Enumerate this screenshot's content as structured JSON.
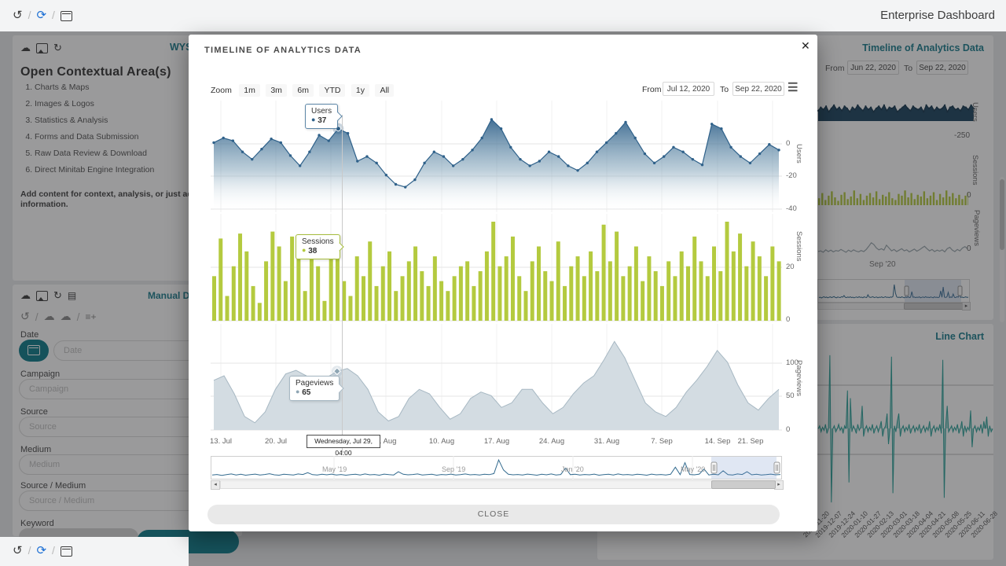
{
  "page": {
    "title": "Enterprise Dashboard"
  },
  "topbar": {
    "icons": [
      "history-icon",
      "refresh-icon",
      "calendar-icon"
    ]
  },
  "footer": {
    "icons": [
      "history-icon",
      "refresh-icon",
      "calendar-icon"
    ]
  },
  "left_panel": {
    "wys_link": "WYS",
    "heading": "Open Contextual Area(s)",
    "list": [
      "Charts & Maps",
      "Images & Logos",
      "Statistics & Analysis",
      "Forms and Data Submission",
      "Raw Data Review & Download",
      "Direct Minitab Engine Integration"
    ],
    "note_line1": "Add content for context, analysis, or just additio",
    "note_line2": "information."
  },
  "form_panel": {
    "manual_link": "Manual Da",
    "fields": [
      {
        "label": "Date",
        "placeholder": "Date"
      },
      {
        "label": "Campaign",
        "placeholder": "Campaign"
      },
      {
        "label": "Source",
        "placeholder": "Source"
      },
      {
        "label": "Medium",
        "placeholder": "Medium"
      },
      {
        "label": "Source / Medium",
        "placeholder": "Source / Medium"
      },
      {
        "label": "Keyword",
        "placeholder": ""
      }
    ]
  },
  "right_panel": {
    "timeline_link": "Timeline of Analytics Data",
    "from_label": "From",
    "from_value": "Jun 22, 2020",
    "to_label": "To",
    "to_value": "Sep 22, 2020",
    "users_axis": "Users",
    "sessions_axis": "Sessions",
    "pageviews_axis": "Pageviews",
    "neg250": "-250",
    "zero1": "0",
    "zero2": "0",
    "sep20": "Sep '20",
    "line_chart_link": "Line Chart",
    "line_xlabels": [
      "2019-11-20",
      "2019-12-07",
      "2019-12-24",
      "2020-01-10",
      "2020-01-27",
      "2020-02-13",
      "2020-03-01",
      "2020-03-18",
      "2020-04-04",
      "2020-04-21",
      "2020-05-08",
      "2020-05-25",
      "2020-06-11",
      "2020-06-28"
    ]
  },
  "modal": {
    "title": "TIMELINE OF ANALYTICS DATA",
    "close_x": "✕",
    "zoom_label": "Zoom",
    "zoom_buttons": [
      "1m",
      "3m",
      "6m",
      "YTD",
      "1y",
      "All"
    ],
    "from_label": "From",
    "from_value": "Jul 12, 2020",
    "to_label": "To",
    "to_value": "Sep 22, 2020",
    "pane_titles": [
      "Users",
      "Sessions",
      "Pageviews"
    ],
    "y_users": [
      "0",
      "-20",
      "-40"
    ],
    "y_sessions": [
      "20",
      "0"
    ],
    "y_pageviews": [
      "100",
      "50",
      "0"
    ],
    "tooltips": {
      "users": {
        "name": "Users",
        "value": "37"
      },
      "sessions": {
        "name": "Sessions",
        "value": "38"
      },
      "pageviews": {
        "name": "Pageviews",
        "value": "65"
      }
    },
    "crosshair_label": "Wednesday, Jul 29, 04:00",
    "x_labels": [
      "13. Jul",
      "20. Jul",
      "27. Jul",
      "3. Aug",
      "10. Aug",
      "17. Aug",
      "24. Aug",
      "31. Aug",
      "7. Sep",
      "14. Sep",
      "21. Sep"
    ],
    "navigator_labels": [
      "May '19",
      "Sep '19",
      "Jan '20",
      "May '20"
    ],
    "close_button": "CLOSE"
  },
  "colors": {
    "teal_accent": "#1d7e8f",
    "teal_button": "#0d7c8a",
    "users_blue": "#2f618a",
    "sessions_green": "#b4ca3f",
    "pageviews_grey": "#a7b8c3",
    "navigator_blue": "#336b8f",
    "teal_line": "#2aa29a",
    "bg_navy": "#1d4460"
  },
  "chart_data": {
    "type": "line",
    "title": "Timeline of Analytics Data",
    "panes": [
      {
        "name": "Users",
        "type": "area",
        "y_ticks": [
          0,
          -20,
          -40
        ]
      },
      {
        "name": "Sessions",
        "type": "bar",
        "y_ticks": [
          20,
          0
        ]
      },
      {
        "name": "Pageviews",
        "type": "area",
        "y_ticks": [
          100,
          50,
          0
        ]
      }
    ],
    "x_range": [
      "Jul 12, 2020",
      "Sep 22, 2020"
    ],
    "users": {
      "values": [
        70,
        75,
        72,
        60,
        52,
        63,
        74,
        70,
        56,
        45,
        60,
        78,
        72,
        85,
        80,
        50,
        55,
        48,
        35,
        25,
        22,
        30,
        48,
        60,
        55,
        45,
        52,
        62,
        75,
        95,
        85,
        65,
        52,
        45,
        50,
        60,
        55,
        45,
        40,
        48,
        60,
        70,
        80,
        92,
        75,
        58,
        48,
        55,
        65,
        60,
        52,
        46,
        90,
        85,
        65,
        55,
        48,
        58,
        68,
        62
      ]
    },
    "sessions": {
      "values": [
        45,
        83,
        25,
        55,
        88,
        70,
        35,
        18,
        60,
        90,
        75,
        40,
        85,
        65,
        30,
        78,
        55,
        20,
        70,
        85,
        40,
        25,
        65,
        45,
        80,
        35,
        55,
        70,
        30,
        45,
        60,
        75,
        50,
        35,
        65,
        40,
        30,
        45,
        55,
        60,
        35,
        50,
        70,
        100,
        55,
        65,
        85,
        45,
        30,
        60,
        75,
        50,
        40,
        80,
        35,
        55,
        65,
        45,
        70,
        50,
        97,
        60,
        90,
        45,
        55,
        75,
        40,
        65,
        50,
        35,
        60,
        45,
        70,
        55,
        85,
        60,
        45,
        75,
        50,
        100,
        70,
        88,
        55,
        80,
        65,
        45,
        75,
        60
      ]
    },
    "pageviews": {
      "values": [
        55,
        60,
        40,
        15,
        8,
        20,
        45,
        62,
        66,
        60,
        50,
        58,
        65,
        68,
        60,
        45,
        20,
        10,
        15,
        35,
        45,
        40,
        25,
        12,
        18,
        35,
        42,
        38,
        25,
        30,
        45,
        45,
        30,
        18,
        25,
        40,
        52,
        60,
        78,
        98,
        80,
        55,
        30,
        20,
        15,
        25,
        42,
        55,
        70,
        88,
        75,
        50,
        30,
        22,
        35,
        45
      ]
    },
    "navigator": {
      "values": [
        12,
        15,
        10,
        14,
        18,
        12,
        16,
        11,
        14,
        17,
        12,
        15,
        19,
        13,
        11,
        16,
        14,
        12,
        18,
        15,
        25,
        14,
        12,
        16,
        13,
        17,
        12,
        15,
        11,
        14,
        16,
        12,
        18,
        13,
        15,
        11,
        17,
        14,
        12,
        30,
        16,
        13,
        15,
        18,
        12,
        14,
        16,
        11,
        15,
        13,
        17,
        12,
        14,
        18,
        13,
        15,
        12,
        16,
        14,
        20,
        95,
        40,
        16,
        13,
        15,
        12,
        17,
        14,
        11,
        16,
        13,
        18,
        12,
        15,
        50,
        14,
        16,
        12,
        15,
        13,
        17,
        11,
        14,
        16,
        12,
        18,
        13,
        15,
        12,
        16,
        14,
        11,
        17,
        13,
        15,
        12,
        16,
        55,
        14,
        80,
        15,
        13,
        17,
        45,
        12,
        16,
        13,
        35,
        14,
        12,
        18,
        15,
        30,
        13,
        16,
        12,
        14,
        17,
        13,
        15
      ]
    },
    "bg_users": {
      "values": [
        40,
        55,
        45,
        60,
        35,
        50,
        65,
        45,
        55,
        40,
        60,
        50,
        35,
        55,
        45,
        65,
        50,
        40,
        60,
        45,
        55,
        35,
        50,
        60,
        45,
        65,
        40,
        55,
        50,
        60,
        35,
        45,
        55,
        65,
        50,
        40,
        60,
        50,
        45,
        55,
        35,
        65,
        50,
        60,
        40,
        55,
        45,
        50,
        65,
        35,
        55,
        60,
        45,
        50,
        40,
        60,
        55,
        45,
        65,
        50
      ]
    },
    "bg_sessions": {
      "values": [
        40,
        70,
        30,
        55,
        80,
        45,
        25,
        60,
        75,
        35,
        50,
        85,
        40,
        65,
        30,
        55,
        70,
        45,
        80,
        35,
        60,
        50,
        75,
        40,
        30,
        65,
        55,
        85,
        45,
        70,
        35,
        60,
        50,
        80,
        40,
        55,
        75,
        30,
        65,
        45,
        85,
        50,
        70,
        40,
        60,
        35,
        55,
        75
      ]
    },
    "bg_pageviews": {
      "values": [
        20,
        22,
        18,
        25,
        20,
        24,
        19,
        23,
        21,
        26,
        22,
        18,
        24,
        20,
        25,
        21,
        19,
        23,
        20,
        26,
        35,
        45,
        40,
        30,
        25,
        28,
        24,
        38,
        30,
        22,
        26,
        20,
        24,
        28,
        22,
        25,
        19,
        23,
        27,
        21,
        25,
        30,
        35,
        28,
        22,
        26,
        20,
        24,
        21,
        25,
        19,
        28,
        32,
        24,
        20,
        26,
        22,
        30,
        34,
        28
      ]
    },
    "teal_line": {
      "values": [
        50,
        52,
        48,
        51,
        49,
        53,
        47,
        50,
        98,
        2,
        50,
        52,
        48,
        50,
        53,
        49,
        51,
        47,
        52,
        50,
        75,
        15,
        70,
        48,
        52,
        50,
        47,
        53,
        49,
        51,
        65,
        45,
        50,
        52,
        48,
        51,
        49,
        53,
        47,
        50,
        52,
        48,
        51,
        55,
        45,
        50,
        52,
        60,
        40,
        50,
        97,
        8,
        52,
        48,
        55,
        60,
        45,
        50,
        52,
        48,
        51,
        49,
        53,
        47,
        50,
        52,
        48,
        51,
        49,
        53,
        47,
        50,
        52,
        48,
        51,
        49,
        55,
        45,
        50,
        52,
        48,
        51,
        49,
        53,
        47,
        95,
        5,
        52,
        65,
        48,
        50,
        52,
        48,
        51,
        49,
        53,
        47,
        50,
        55,
        45,
        52,
        48,
        51,
        49,
        62,
        38,
        50,
        52,
        48,
        51,
        49,
        53,
        47,
        55,
        50,
        58,
        45,
        52,
        48,
        50
      ]
    }
  }
}
